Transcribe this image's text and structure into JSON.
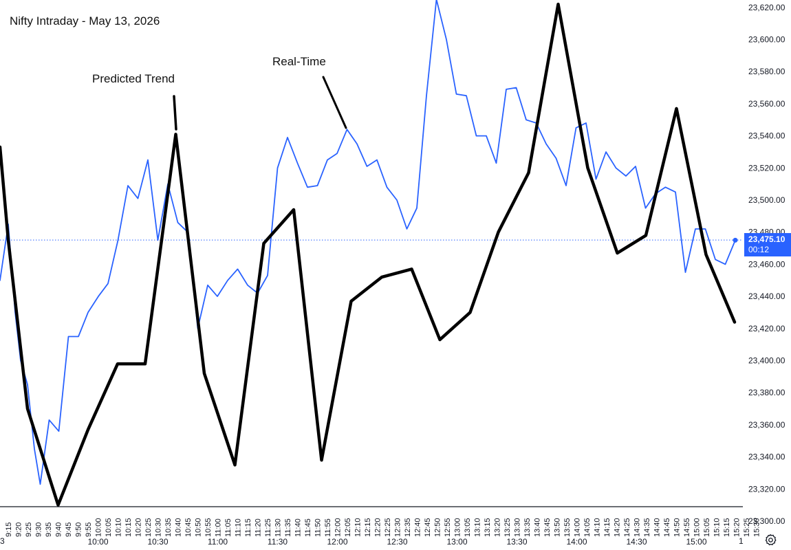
{
  "chart_data": {
    "type": "line",
    "title": "Nifty Intraday - May 13, 2026",
    "annotations": [
      "Predicted Trend",
      "Real-Time"
    ],
    "ylim": [
      23300,
      23620
    ],
    "y_ticks": [
      "23,300.00",
      "23,320.00",
      "23,340.00",
      "23,360.00",
      "23,380.00",
      "23,400.00",
      "23,420.00",
      "23,440.00",
      "23,460.00",
      "23,480.00",
      "23,500.00",
      "23,520.00",
      "23,540.00",
      "23,560.00",
      "23,580.00",
      "23,600.00",
      "23,620.00"
    ],
    "x_ticks": [
      "9:15",
      "9:20",
      "9:25",
      "9:30",
      "9:35",
      "9:40",
      "9:45",
      "9:50",
      "9:55",
      "10:00",
      "10:05",
      "10:10",
      "10:15",
      "10:20",
      "10:25",
      "10:30",
      "10:35",
      "10:40",
      "10:45",
      "10:50",
      "10:55",
      "11:00",
      "11:05",
      "11:10",
      "11:15",
      "11:20",
      "11:25",
      "11:30",
      "11:35",
      "11:40",
      "11:45",
      "11:50",
      "11:55",
      "12:00",
      "12:05",
      "12:10",
      "12:15",
      "12:20",
      "12:25",
      "12:30",
      "12:35",
      "12:40",
      "12:45",
      "12:50",
      "12:55",
      "13:00",
      "13:05",
      "13:10",
      "13:15",
      "13:20",
      "13:25",
      "13:30",
      "13:35",
      "13:40",
      "13:45",
      "13:50",
      "13:55",
      "14:00",
      "14:05",
      "14:10",
      "14:15",
      "14:20",
      "14:25",
      "14:30",
      "14:35",
      "14:40",
      "14:45",
      "14:50",
      "14:55",
      "15:00",
      "15:05",
      "15:10",
      "15:15",
      "15:20",
      "15:25",
      "15:30"
    ],
    "x_major_ticks": [
      "10:00",
      "10:30",
      "11:00",
      "11:30",
      "12:00",
      "12:30",
      "13:00",
      "13:30",
      "14:00",
      "14:30",
      "15:00"
    ],
    "edge_labels": [
      "3",
      "1"
    ],
    "last_price": "23,475.10",
    "countdown": "00:12",
    "grid": false,
    "series": [
      {
        "color": "#2962ff",
        "points": [
          [
            0.0,
            23450
          ],
          [
            12.0,
            23485
          ],
          [
            22.0,
            23430
          ],
          [
            30.0,
            23400
          ],
          [
            40.0,
            23385
          ],
          [
            50.0,
            23345
          ],
          [
            58.5,
            23323
          ],
          [
            71.5,
            23363
          ],
          [
            85.5,
            23356
          ],
          [
            99.5,
            23415
          ],
          [
            114.0,
            23415
          ],
          [
            128.0,
            23430
          ],
          [
            143.0,
            23440
          ],
          [
            157.0,
            23448
          ],
          [
            171.5,
            23475
          ],
          [
            186.0,
            23509
          ],
          [
            200.5,
            23501
          ],
          [
            215.0,
            23525
          ],
          [
            229.5,
            23475
          ],
          [
            244.0,
            23510
          ],
          [
            258.5,
            23486
          ],
          [
            273.0,
            23480
          ],
          [
            287.5,
            23420
          ],
          [
            302.0,
            23447
          ],
          [
            316.0,
            23440
          ],
          [
            331.0,
            23450
          ],
          [
            345.5,
            23457
          ],
          [
            360.0,
            23447
          ],
          [
            374.5,
            23442
          ],
          [
            389.0,
            23453
          ],
          [
            403.5,
            23520
          ],
          [
            418.0,
            23539
          ],
          [
            432.5,
            23523
          ],
          [
            447.0,
            23508
          ],
          [
            461.5,
            23509
          ],
          [
            476.0,
            23525
          ],
          [
            490.0,
            23529
          ],
          [
            504.5,
            23544
          ],
          [
            519.0,
            23535
          ],
          [
            533.5,
            23521
          ],
          [
            548.0,
            23525
          ],
          [
            562.5,
            23508
          ],
          [
            577.0,
            23500
          ],
          [
            591.5,
            23482
          ],
          [
            606.0,
            23495
          ],
          [
            620.0,
            23565
          ],
          [
            634.5,
            23625
          ],
          [
            649.0,
            23600
          ],
          [
            663.5,
            23566
          ],
          [
            678.0,
            23565
          ],
          [
            692.5,
            23540
          ],
          [
            707.0,
            23540
          ],
          [
            721.5,
            23523
          ],
          [
            736.0,
            23569
          ],
          [
            750.5,
            23570
          ],
          [
            765.0,
            23550
          ],
          [
            779.5,
            23548
          ],
          [
            794.0,
            23535
          ],
          [
            808.5,
            23526
          ],
          [
            823.0,
            23509
          ],
          [
            837.5,
            23545
          ],
          [
            852.0,
            23548
          ],
          [
            866.5,
            23513
          ],
          [
            881.0,
            23530
          ],
          [
            895.5,
            23520
          ],
          [
            910.0,
            23515
          ],
          [
            924.0,
            23521
          ],
          [
            938.5,
            23495
          ],
          [
            953.0,
            23504
          ],
          [
            967.5,
            23508
          ],
          [
            982.0,
            23505
          ],
          [
            996.5,
            23455
          ],
          [
            1011.0,
            23482
          ],
          [
            1025.5,
            23482
          ],
          [
            1040.0,
            23463
          ],
          [
            1054.5,
            23460
          ],
          [
            1069.0,
            23475
          ]
        ]
      },
      {
        "color": "#000000",
        "points": [
          [
            0.0,
            23533
          ],
          [
            12.0,
            23475
          ],
          [
            40.0,
            23370
          ],
          [
            84.5,
            23310
          ],
          [
            128.0,
            23357
          ],
          [
            171.0,
            23398
          ],
          [
            211.0,
            23398
          ],
          [
            255.5,
            23541
          ],
          [
            297.0,
            23392
          ],
          [
            341.5,
            23335
          ],
          [
            383.5,
            23473
          ],
          [
            427.0,
            23494
          ],
          [
            467.5,
            23338
          ],
          [
            510.5,
            23437
          ],
          [
            555.0,
            23452
          ],
          [
            598.5,
            23457
          ],
          [
            639.5,
            23413
          ],
          [
            683.5,
            23430
          ],
          [
            724.5,
            23480
          ],
          [
            768.5,
            23517
          ],
          [
            811.5,
            23622
          ],
          [
            854.5,
            23520
          ],
          [
            897.5,
            23467
          ],
          [
            939.0,
            23478
          ],
          [
            983.5,
            23557
          ],
          [
            1026.5,
            23466
          ],
          [
            1068.0,
            23424
          ]
        ]
      }
    ]
  }
}
